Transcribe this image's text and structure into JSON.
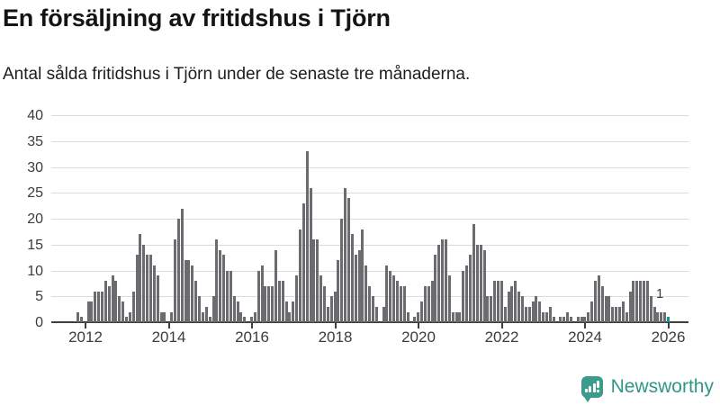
{
  "header": {
    "title": "En försäljning av fritidshus i Tjörn",
    "subtitle": "Antal sålda fritidshus i Tjörn under de senaste tre månaderna."
  },
  "chart_data": {
    "type": "bar",
    "title": "En försäljning av fritidshus i Tjörn",
    "ylabel": "",
    "xlabel": "",
    "ylim": [
      0,
      40
    ],
    "grid": true,
    "y_ticks": [
      0,
      5,
      10,
      15,
      20,
      25,
      30,
      35,
      40
    ],
    "x_tick_labels": [
      "2012",
      "2014",
      "2016",
      "2018",
      "2020",
      "2022",
      "2024",
      "2026"
    ],
    "x_interval": "month",
    "x_start": "2011-11",
    "x_end": "2026-01",
    "bar_color": "#6b6b70",
    "highlight_color": "#0e9599",
    "highlight_label": "1",
    "values": [
      2,
      1,
      0,
      4,
      4,
      6,
      6,
      6,
      8,
      7,
      9,
      8,
      5,
      4,
      1,
      2,
      6,
      13,
      17,
      15,
      13,
      13,
      11,
      9,
      2,
      2,
      0,
      2,
      16,
      20,
      22,
      12,
      12,
      11,
      8,
      5,
      2,
      3,
      1,
      5,
      16,
      14,
      13,
      10,
      10,
      5,
      4,
      2,
      1,
      0,
      1,
      2,
      10,
      11,
      7,
      7,
      7,
      14,
      8,
      8,
      4,
      2,
      4,
      9,
      18,
      23,
      33,
      26,
      16,
      16,
      9,
      7,
      3,
      5,
      6,
      12,
      20,
      26,
      24,
      17,
      13,
      14,
      18,
      11,
      7,
      5,
      3,
      0,
      3,
      11,
      10,
      9,
      8,
      7,
      7,
      2,
      0,
      1,
      2,
      4,
      7,
      7,
      8,
      13,
      15,
      16,
      16,
      9,
      2,
      2,
      2,
      10,
      11,
      13,
      19,
      15,
      15,
      14,
      5,
      5,
      8,
      8,
      8,
      3,
      6,
      7,
      8,
      6,
      5,
      3,
      3,
      4,
      5,
      4,
      2,
      2,
      3,
      1,
      0,
      1,
      1,
      2,
      1,
      0,
      1,
      1,
      1,
      2,
      4,
      8,
      9,
      7,
      5,
      5,
      3,
      3,
      3,
      4,
      2,
      6,
      8,
      8,
      8,
      8,
      8,
      5,
      3,
      2,
      2,
      2,
      1
    ]
  },
  "footer": {
    "brand": "Newsworthy",
    "brand_color": "#2e9785"
  }
}
